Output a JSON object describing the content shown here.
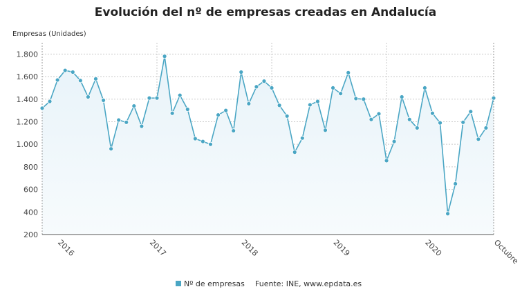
{
  "chart_data": {
    "type": "line",
    "title": "Evolución del nº de empresas creadas en Andalucía",
    "ylabel": "Empresas (Unidades)",
    "xlabel": "",
    "ylim": [
      200,
      1900
    ],
    "yticks": [
      200,
      400,
      600,
      800,
      1000,
      1200,
      1400,
      1600,
      1800
    ],
    "ytick_labels": [
      "200",
      "400",
      "600",
      "800",
      "1.000",
      "1.200",
      "1.400",
      "1.600",
      "1.800"
    ],
    "x_labels": [
      "2016",
      "2017",
      "2018",
      "2019",
      "2020",
      "Octubre"
    ],
    "x_label_index": [
      2,
      14,
      26,
      38,
      50,
      59
    ],
    "year_grid_index": [
      15,
      30,
      45
    ],
    "grid": true,
    "legend_position": "bottom",
    "source_text": "Fuente: INE, www.epdata.es",
    "series": [
      {
        "name": "Nº de empresas",
        "color": "#4aa6c4",
        "values": [
          1320,
          1380,
          1570,
          1655,
          1640,
          1565,
          1420,
          1580,
          1390,
          960,
          1215,
          1195,
          1340,
          1160,
          1410,
          1410,
          1780,
          1275,
          1435,
          1310,
          1050,
          1025,
          1000,
          1260,
          1300,
          1120,
          1640,
          1360,
          1510,
          1560,
          1500,
          1345,
          1250,
          930,
          1055,
          1350,
          1380,
          1125,
          1500,
          1450,
          1635,
          1405,
          1400,
          1220,
          1270,
          855,
          1025,
          1420,
          1220,
          1145,
          1500,
          1275,
          1190,
          385,
          650,
          1195,
          1290,
          1045,
          1145,
          1410
        ]
      }
    ]
  }
}
